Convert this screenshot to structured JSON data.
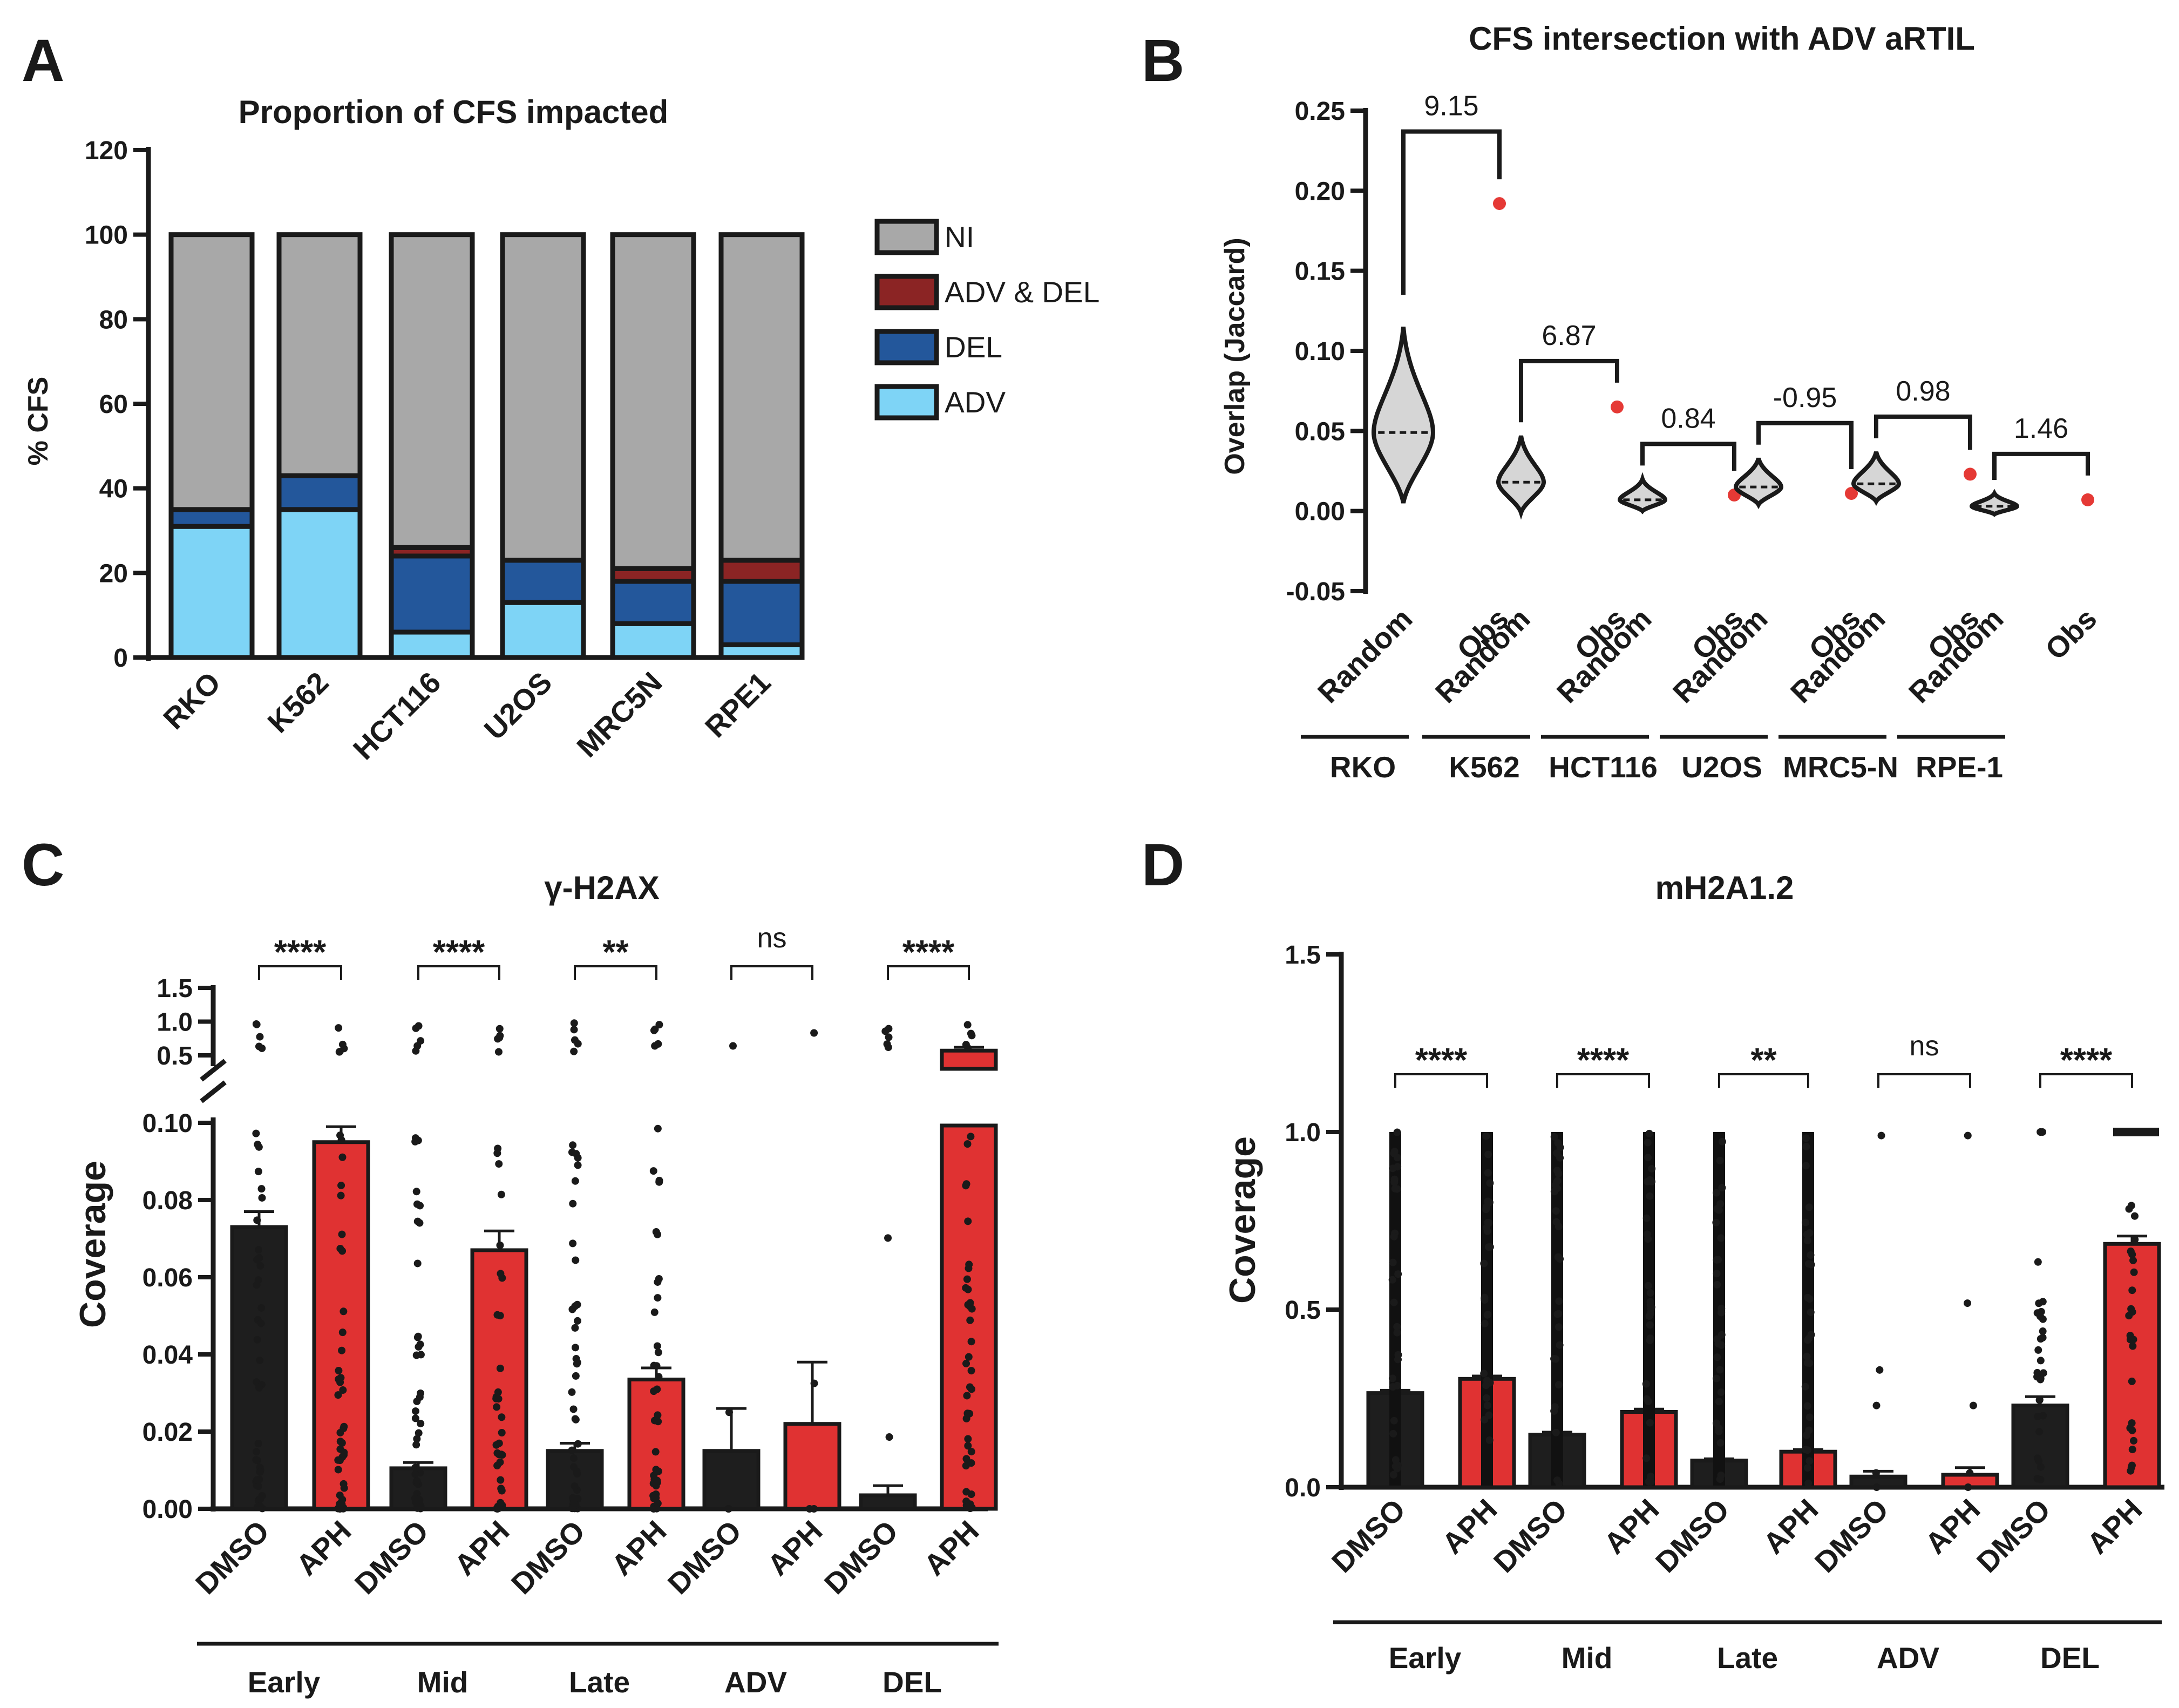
{
  "colors": {
    "ni": "#a8a8a8",
    "adv_del": "#8b2424",
    "del": "#23579b",
    "adv": "#7ed4f6",
    "dmso": "#1e1e1e",
    "aph": "#e03232",
    "obs": "#e53935",
    "axis": "#1a1a1a"
  },
  "panels": {
    "a": "A",
    "b": "B",
    "c": "C",
    "d": "D"
  },
  "chart_data": [
    {
      "id": "A",
      "type": "bar",
      "stacked": true,
      "title": "Proportion of CFS impacted",
      "ylabel": "% CFS",
      "xlabel": "",
      "ylim": [
        0,
        120
      ],
      "yticks": [
        0,
        20,
        40,
        60,
        80,
        100,
        120
      ],
      "categories": [
        "RKO",
        "K562",
        "HCT116",
        "U2OS",
        "MRC5N",
        "RPE1"
      ],
      "series": [
        {
          "name": "ADV",
          "values": [
            31,
            35,
            6,
            13,
            8,
            3
          ]
        },
        {
          "name": "DEL",
          "values": [
            4,
            8,
            18,
            10,
            10,
            15
          ]
        },
        {
          "name": "ADV & DEL",
          "values": [
            0,
            0,
            2,
            0,
            3,
            5
          ]
        },
        {
          "name": "NI",
          "values": [
            65,
            57,
            74,
            77,
            79,
            77
          ]
        }
      ],
      "legend": [
        "NI",
        "ADV & DEL",
        "DEL",
        "ADV"
      ],
      "legend_position": "right"
    },
    {
      "id": "B",
      "type": "violin",
      "title": "CFS intersection with ADV aRTIL",
      "ylabel": "Overlap (Jaccard)",
      "ylim": [
        -0.05,
        0.25
      ],
      "yticks": [
        -0.05,
        0.0,
        0.05,
        0.1,
        0.15,
        0.2,
        0.25
      ],
      "ytick_labels": [
        "-0.05",
        "0.00",
        "0.05",
        "0.10",
        "0.15",
        "0.20",
        "0.25"
      ],
      "groups": [
        "RKO",
        "K562",
        "HCT116",
        "U2OS",
        "MRC5-N",
        "RPE-1"
      ],
      "x_labels": [
        "Random",
        "Obs"
      ],
      "random_median": [
        0.049,
        0.018,
        0.007,
        0.015,
        0.017,
        0.003
      ],
      "random_min": [
        0.005,
        -0.001,
        0.0,
        0.004,
        0.006,
        -0.002
      ],
      "random_max": [
        0.115,
        0.047,
        0.02,
        0.033,
        0.037,
        0.011
      ],
      "observed": [
        0.192,
        0.065,
        0.01,
        0.011,
        0.023,
        0.007
      ],
      "annotations": [
        "9.15",
        "6.87",
        "0.84",
        "-0.95",
        "0.98",
        "1.46"
      ]
    },
    {
      "id": "C",
      "type": "bar",
      "title": "γ-H2AX",
      "ylabel": "Coverage",
      "y_axis_break": true,
      "lower_ylim": [
        0,
        0.1
      ],
      "lower_yticks": [
        "0.00",
        "0.02",
        "0.04",
        "0.06",
        "0.08",
        "0.10"
      ],
      "upper_ylim": [
        0.5,
        1.5
      ],
      "upper_yticks": [
        "0.5",
        "1.0",
        "1.5"
      ],
      "groups": [
        "Early",
        "Mid",
        "Late",
        "ADV",
        "DEL"
      ],
      "treatments": [
        "DMSO",
        "APH"
      ],
      "series": [
        {
          "name": "DMSO",
          "values": [
            0.073,
            0.0105,
            0.015,
            0.015,
            0.0035
          ],
          "error": [
            0.004,
            0.0015,
            0.002,
            0.011,
            0.0025
          ]
        },
        {
          "name": "APH",
          "values": [
            0.095,
            0.067,
            0.0335,
            0.022,
            0.57
          ],
          "error": [
            0.004,
            0.005,
            0.003,
            0.016,
            0.05
          ]
        }
      ],
      "significance": [
        "****",
        "****",
        "**",
        "ns",
        "****"
      ]
    },
    {
      "id": "D",
      "type": "bar",
      "title": "mH2A1.2",
      "ylabel": "Coverage",
      "ylim": [
        0,
        1.5
      ],
      "yticks": [
        "0.0",
        "0.5",
        "1.0",
        "1.5"
      ],
      "groups": [
        "Early",
        "Mid",
        "Late",
        "ADV",
        "DEL"
      ],
      "treatments": [
        "DMSO",
        "APH"
      ],
      "series": [
        {
          "name": "DMSO",
          "values": [
            0.265,
            0.148,
            0.075,
            0.03,
            0.23
          ],
          "error": [
            0.008,
            0.007,
            0.005,
            0.015,
            0.025
          ]
        },
        {
          "name": "APH",
          "values": [
            0.305,
            0.212,
            0.1,
            0.035,
            0.685
          ],
          "error": [
            0.008,
            0.008,
            0.006,
            0.02,
            0.022
          ]
        }
      ],
      "significance": [
        "****",
        "****",
        "**",
        "ns",
        "****"
      ]
    }
  ]
}
